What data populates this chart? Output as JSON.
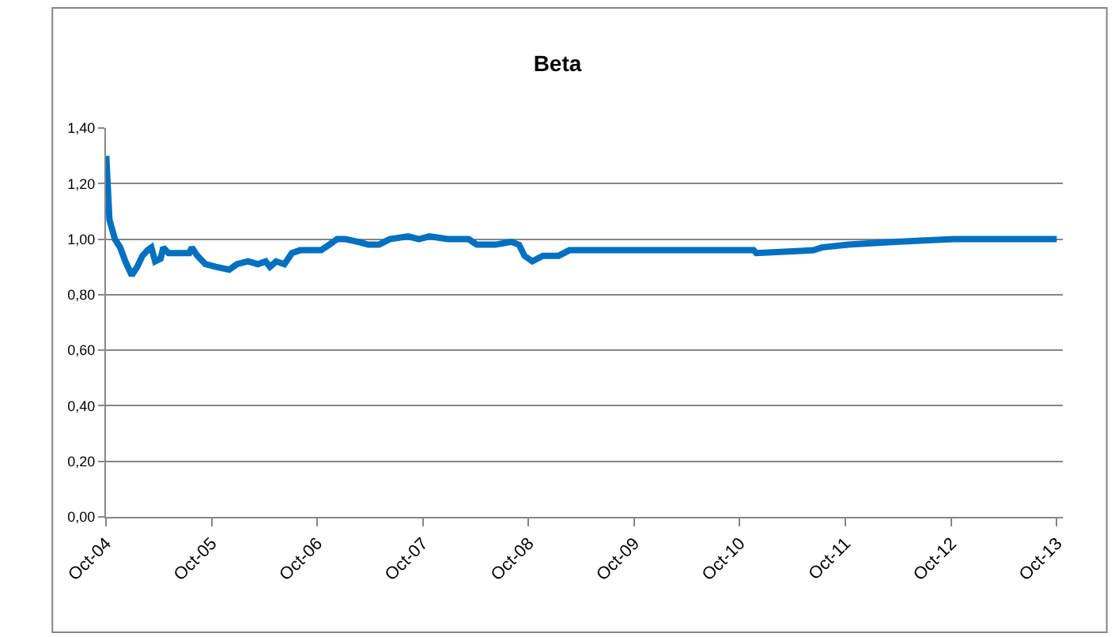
{
  "chart_data": {
    "type": "line",
    "title": "Beta",
    "x": [
      "2004-10-02",
      "2004-10-13",
      "2004-11-01",
      "2004-11-19",
      "2004-12-07",
      "2004-12-29",
      "2005-01-17",
      "2005-02-04",
      "2005-02-22",
      "2005-03-07",
      "2005-03-20",
      "2005-04-08",
      "2005-04-17",
      "2005-05-05",
      "2005-06-10",
      "2005-07-16",
      "2005-07-25",
      "2005-08-13",
      "2005-09-10",
      "2005-10-16",
      "2005-12-01",
      "2005-12-28",
      "2006-02-04",
      "2006-03-10",
      "2006-04-06",
      "2006-04-21",
      "2006-05-12",
      "2006-06-10",
      "2006-07-06",
      "2006-08-03",
      "2006-10-15",
      "2006-11-12",
      "2006-12-09",
      "2007-01-06",
      "2007-02-21",
      "2007-03-27",
      "2007-05-03",
      "2007-06-09",
      "2007-08-12",
      "2007-09-18",
      "2007-10-24",
      "2007-12-27",
      "2008-03-08",
      "2008-04-05",
      "2008-06-08",
      "2008-08-02",
      "2008-08-29",
      "2008-09-17",
      "2008-10-14",
      "2008-11-19",
      "2009-01-13",
      "2009-02-19",
      "2009-04-13",
      "2010-03-25",
      "2010-11-18",
      "2010-11-27",
      "2011-06-14",
      "2011-07-11",
      "2011-10-11",
      "2012-03-23",
      "2012-10-10",
      "2013-10-01"
    ],
    "series": [
      {
        "color": "#0070c0",
        "values": [
          1.3,
          1.07,
          1.0,
          0.97,
          0.92,
          0.87,
          0.9,
          0.94,
          0.96,
          0.97,
          0.92,
          0.93,
          0.97,
          0.95,
          0.95,
          0.95,
          0.97,
          0.94,
          0.91,
          0.9,
          0.89,
          0.91,
          0.92,
          0.91,
          0.92,
          0.9,
          0.92,
          0.91,
          0.95,
          0.96,
          0.96,
          0.98,
          1.0,
          1.0,
          0.99,
          0.98,
          0.98,
          1.0,
          1.01,
          1.0,
          1.01,
          1.0,
          1.0,
          0.98,
          0.98,
          0.99,
          0.98,
          0.94,
          0.92,
          0.94,
          0.94,
          0.96,
          0.96,
          0.96,
          0.96,
          0.95,
          0.96,
          0.97,
          0.98,
          0.99,
          1.0,
          1.0
        ]
      }
    ],
    "xlim": [
      "2004-10-01",
      "2013-10-22"
    ],
    "xticks": [
      {
        "value": "2004-10-01",
        "label": "Oct-04"
      },
      {
        "value": "2005-10-01",
        "label": "Oct-05"
      },
      {
        "value": "2006-10-01",
        "label": "Oct-06"
      },
      {
        "value": "2007-10-01",
        "label": "Oct-07"
      },
      {
        "value": "2008-10-01",
        "label": "Oct-08"
      },
      {
        "value": "2009-10-01",
        "label": "Oct-09"
      },
      {
        "value": "2010-10-01",
        "label": "Oct-10"
      },
      {
        "value": "2011-10-01",
        "label": "Oct-11"
      },
      {
        "value": "2012-10-01",
        "label": "Oct-12"
      },
      {
        "value": "2013-10-01",
        "label": "Oct-13"
      }
    ],
    "ylim": [
      0,
      1.4
    ],
    "yticks": [
      {
        "value": 0,
        "label": "0,00"
      },
      {
        "value": 0.2,
        "label": "0,20"
      },
      {
        "value": 0.4,
        "label": "0,40"
      },
      {
        "value": 0.6,
        "label": "0,60"
      },
      {
        "value": 0.8,
        "label": "0,80"
      },
      {
        "value": 1.0,
        "label": "1,00"
      },
      {
        "value": 1.2,
        "label": "1,20"
      },
      {
        "value": 1.4,
        "label": "1,40"
      }
    ],
    "grid": "y",
    "marker": "none",
    "line_style": "solid"
  }
}
